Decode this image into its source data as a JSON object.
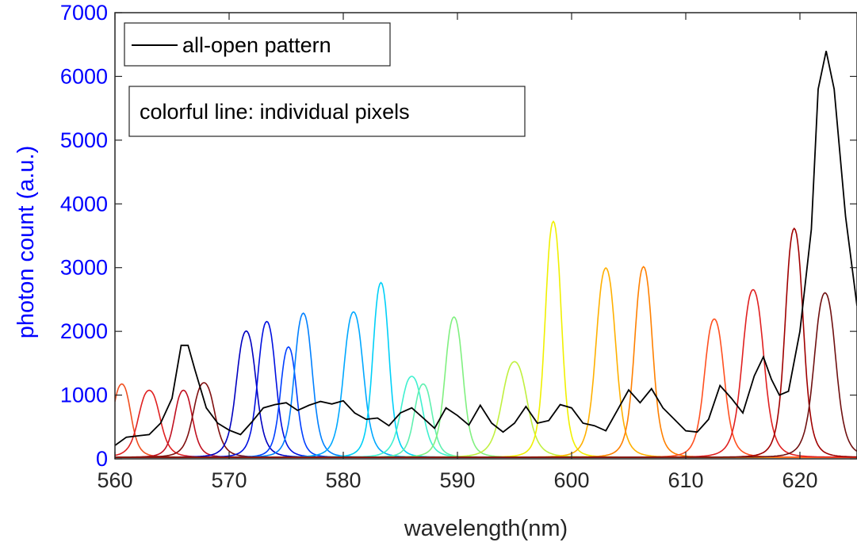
{
  "chart_data": {
    "type": "line",
    "xlabel": "wavelength(nm)",
    "ylabel": "photon count (a.u.)",
    "xlim": [
      560,
      625
    ],
    "ylim": [
      0,
      7000
    ],
    "xticks": [
      560,
      570,
      580,
      590,
      600,
      610,
      620
    ],
    "yticks": [
      0,
      1000,
      2000,
      3000,
      4000,
      5000,
      6000,
      7000
    ],
    "grid": false,
    "colors": {
      "ytick": "#0000ff",
      "xtick": "#262626",
      "axis": "#262626"
    },
    "legend": {
      "placement": "top-left",
      "entries": [
        "all-open pattern"
      ]
    },
    "annotation": "colorful line: individual pixels",
    "reference": {
      "name": "all-open pattern",
      "color": "#000000",
      "points": [
        [
          560,
          210
        ],
        [
          561,
          340
        ],
        [
          562,
          360
        ],
        [
          563,
          380
        ],
        [
          564,
          560
        ],
        [
          565,
          950
        ],
        [
          565.8,
          1780
        ],
        [
          566.4,
          1780
        ],
        [
          567,
          1400
        ],
        [
          568,
          800
        ],
        [
          569,
          560
        ],
        [
          570,
          450
        ],
        [
          571,
          380
        ],
        [
          572,
          580
        ],
        [
          573,
          800
        ],
        [
          574,
          850
        ],
        [
          575,
          880
        ],
        [
          576,
          760
        ],
        [
          577,
          840
        ],
        [
          578,
          900
        ],
        [
          579,
          860
        ],
        [
          580,
          910
        ],
        [
          581,
          720
        ],
        [
          582,
          620
        ],
        [
          583,
          640
        ],
        [
          584,
          520
        ],
        [
          585,
          720
        ],
        [
          586,
          800
        ],
        [
          587,
          640
        ],
        [
          588,
          480
        ],
        [
          589,
          800
        ],
        [
          590,
          680
        ],
        [
          591,
          530
        ],
        [
          592,
          840
        ],
        [
          593,
          560
        ],
        [
          594,
          420
        ],
        [
          595,
          560
        ],
        [
          596,
          820
        ],
        [
          597,
          560
        ],
        [
          598,
          600
        ],
        [
          599,
          850
        ],
        [
          600,
          800
        ],
        [
          601,
          560
        ],
        [
          602,
          520
        ],
        [
          603,
          440
        ],
        [
          604,
          760
        ],
        [
          605,
          1080
        ],
        [
          606,
          880
        ],
        [
          607,
          1100
        ],
        [
          608,
          800
        ],
        [
          609,
          620
        ],
        [
          610,
          440
        ],
        [
          611,
          420
        ],
        [
          612,
          620
        ],
        [
          613,
          1150
        ],
        [
          614,
          950
        ],
        [
          615,
          720
        ],
        [
          616,
          1300
        ],
        [
          616.8,
          1600
        ],
        [
          617.5,
          1250
        ],
        [
          618.2,
          1000
        ],
        [
          619,
          1060
        ],
        [
          620,
          2000
        ],
        [
          621,
          3600
        ],
        [
          621.6,
          5800
        ],
        [
          622.3,
          6400
        ],
        [
          623,
          5800
        ],
        [
          624,
          3800
        ],
        [
          625,
          2400
        ]
      ]
    },
    "series": [
      {
        "peak": 560.6,
        "height": 1150,
        "width": 1.0,
        "color": "#f05020"
      },
      {
        "peak": 563.0,
        "height": 1050,
        "width": 1.2,
        "color": "#e02020"
      },
      {
        "peak": 566.0,
        "height": 1050,
        "width": 1.0,
        "color": "#c01020"
      },
      {
        "peak": 567.8,
        "height": 1170,
        "width": 1.2,
        "color": "#801010"
      },
      {
        "peak": 571.5,
        "height": 1980,
        "width": 1.1,
        "color": "#0000c0"
      },
      {
        "peak": 573.3,
        "height": 2130,
        "width": 1.0,
        "color": "#0010e0"
      },
      {
        "peak": 575.2,
        "height": 1730,
        "width": 0.9,
        "color": "#0040ff"
      },
      {
        "peak": 576.5,
        "height": 2260,
        "width": 1.0,
        "color": "#0080ff"
      },
      {
        "peak": 580.9,
        "height": 2280,
        "width": 1.1,
        "color": "#00a8ff"
      },
      {
        "peak": 583.3,
        "height": 2740,
        "width": 0.9,
        "color": "#00d0f8"
      },
      {
        "peak": 586.0,
        "height": 1270,
        "width": 1.2,
        "color": "#40f0d0"
      },
      {
        "peak": 587.0,
        "height": 1150,
        "width": 1.0,
        "color": "#60f0b0"
      },
      {
        "peak": 589.7,
        "height": 2200,
        "width": 1.0,
        "color": "#80f080"
      },
      {
        "peak": 595.0,
        "height": 1500,
        "width": 1.4,
        "color": "#c0f040"
      },
      {
        "peak": 598.4,
        "height": 3700,
        "width": 0.9,
        "color": "#f0f000"
      },
      {
        "peak": 603.0,
        "height": 2970,
        "width": 1.1,
        "color": "#ffb000"
      },
      {
        "peak": 606.3,
        "height": 2990,
        "width": 1.0,
        "color": "#ff8000"
      },
      {
        "peak": 612.5,
        "height": 2170,
        "width": 1.1,
        "color": "#ff5020"
      },
      {
        "peak": 615.9,
        "height": 2630,
        "width": 1.2,
        "color": "#e02020"
      },
      {
        "peak": 619.5,
        "height": 3590,
        "width": 1.0,
        "color": "#a00000"
      },
      {
        "peak": 622.2,
        "height": 2580,
        "width": 1.2,
        "color": "#701010"
      }
    ]
  }
}
